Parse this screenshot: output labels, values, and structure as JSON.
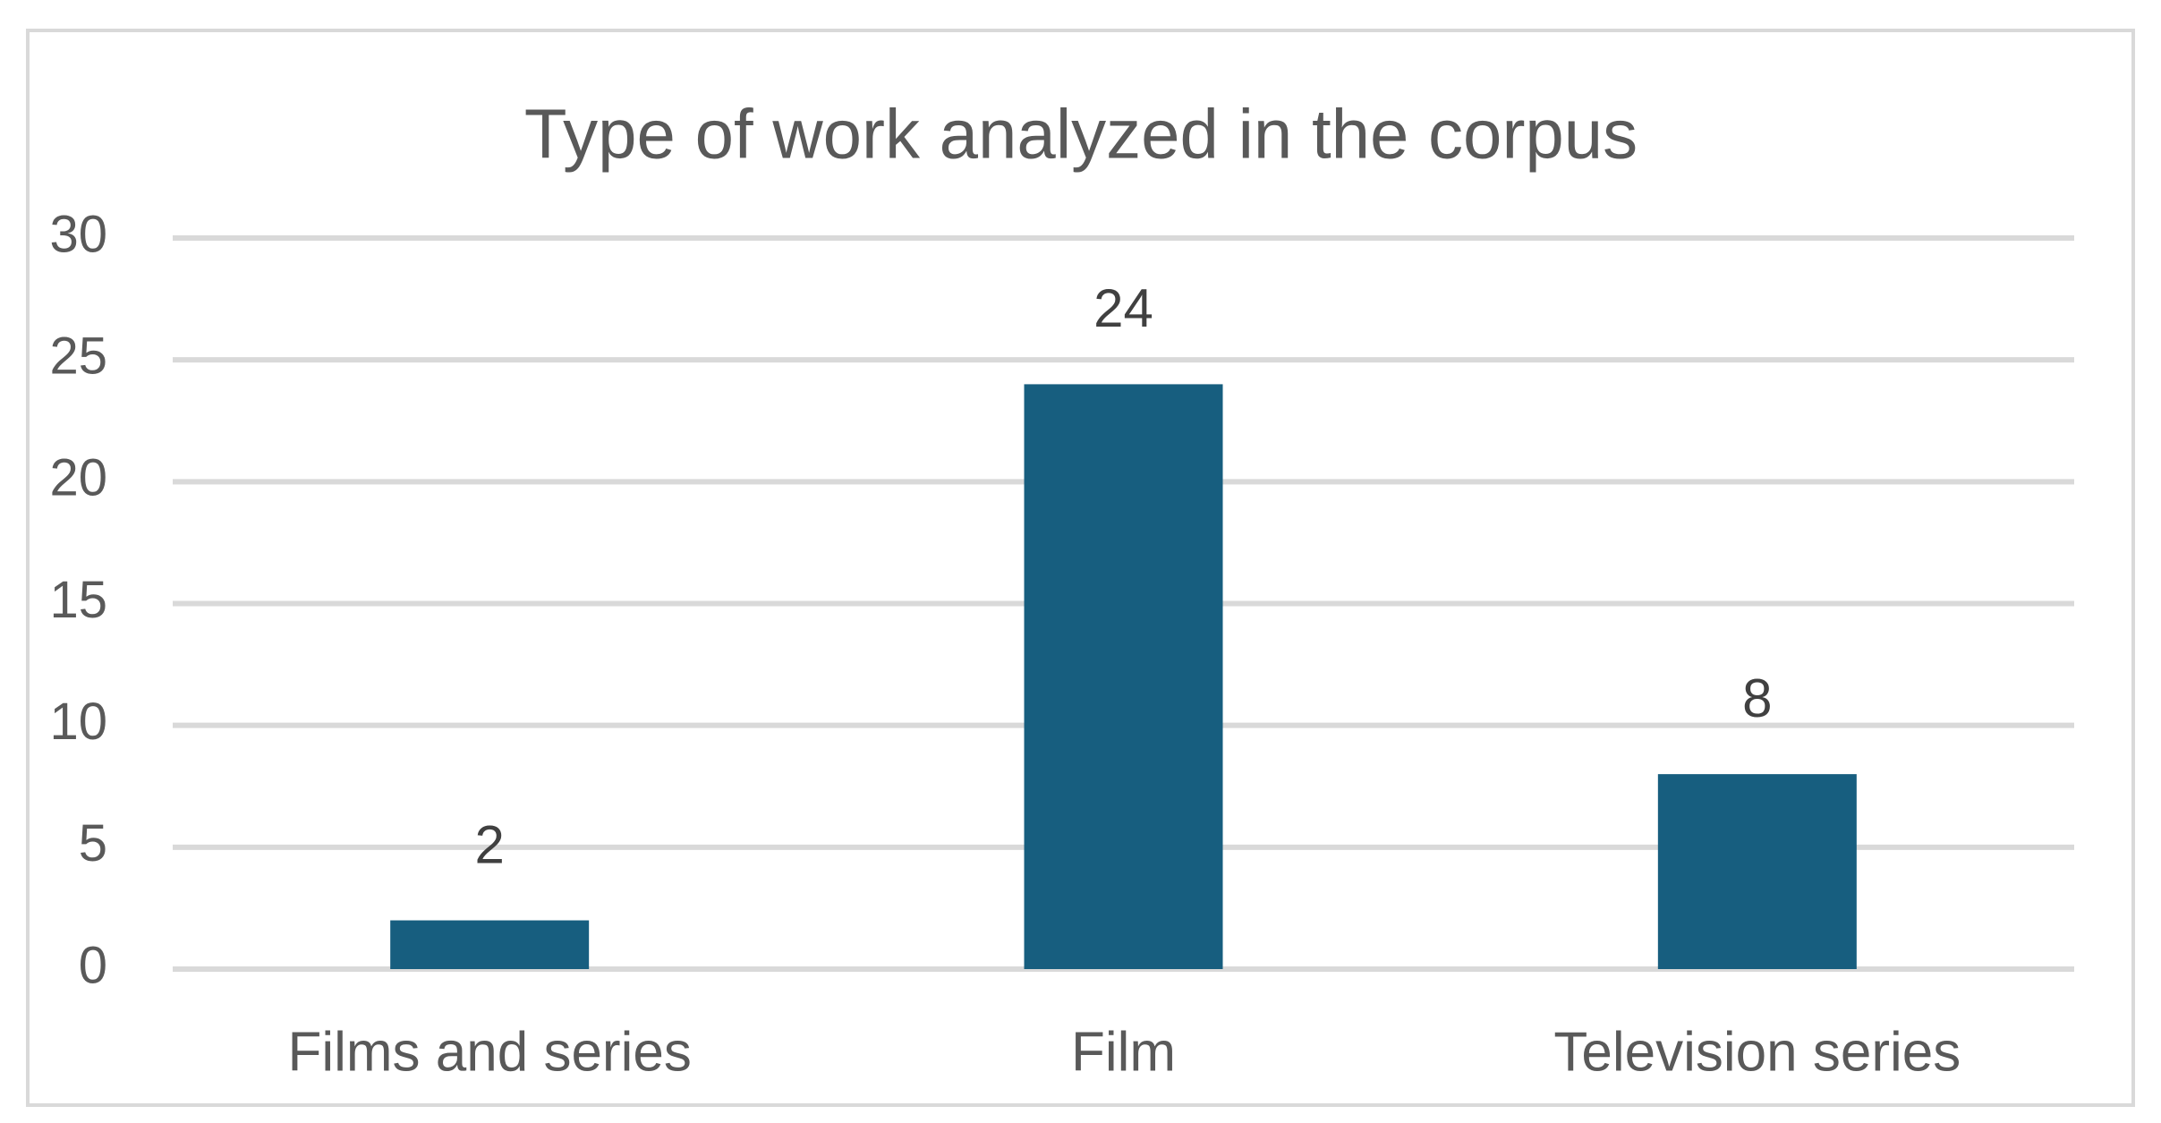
{
  "chart_data": {
    "type": "bar",
    "title": "Type of work analyzed in the corpus",
    "categories": [
      "Films and series",
      "Film",
      "Television series"
    ],
    "values": [
      2,
      24,
      8
    ],
    "color": "#175e7f",
    "ylim": [
      0,
      30
    ],
    "yticks": [
      0,
      5,
      10,
      15,
      20,
      25,
      30
    ],
    "grid": true,
    "data_labels": true
  }
}
